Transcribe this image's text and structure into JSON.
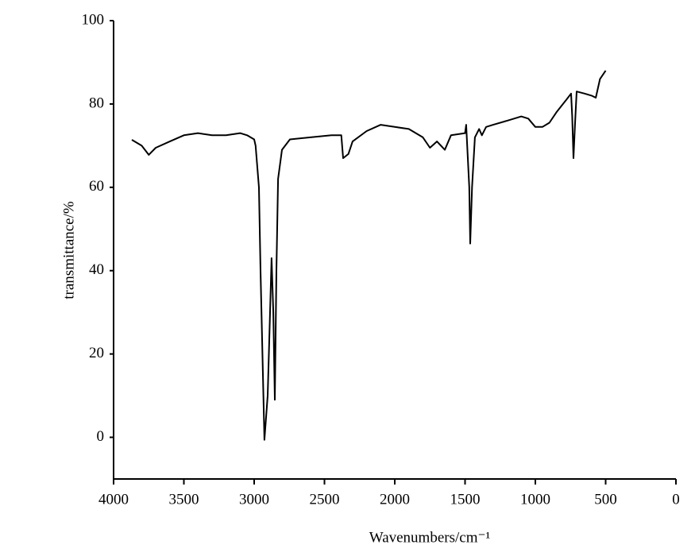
{
  "chart_data": {
    "type": "line",
    "x_label": "Wavenumbers/cm⁻¹",
    "y_label": "transmittance/%",
    "x": [
      3870,
      3800,
      3750,
      3700,
      3600,
      3500,
      3400,
      3300,
      3200,
      3100,
      3050,
      3000,
      2990,
      2966,
      2955,
      2927,
      2904,
      2887,
      2876,
      2864,
      2853,
      2842,
      2830,
      2802,
      2746,
      2600,
      2450,
      2380,
      2367,
      2330,
      2300,
      2200,
      2100,
      2000,
      1900,
      1800,
      1750,
      1700,
      1644,
      1600,
      1500,
      1492,
      1470,
      1463,
      1450,
      1430,
      1400,
      1380,
      1350,
      1300,
      1200,
      1100,
      1050,
      1000,
      950,
      900,
      850,
      780,
      746,
      738,
      729,
      718,
      706,
      650,
      600,
      570,
      540,
      500
    ],
    "series": [
      {
        "color": "#000000",
        "values": [
          71.4,
          70,
          67.8,
          69.5,
          71,
          72.5,
          73,
          72.5,
          72.5,
          73,
          72.5,
          71.5,
          70,
          60,
          40,
          -0.6,
          10,
          30,
          43,
          30,
          9,
          40,
          62,
          69,
          71.5,
          72,
          72.5,
          72.5,
          67,
          68,
          71,
          73.5,
          75,
          74.5,
          74,
          72,
          69.5,
          71,
          69,
          72.5,
          73,
          75,
          60,
          46.5,
          60,
          72,
          74,
          72.5,
          74.5,
          75,
          76,
          77,
          76.5,
          74.5,
          74.5,
          75.5,
          78,
          81,
          82.5,
          77,
          67,
          75,
          83,
          82.5,
          82,
          81.5,
          86,
          88
        ]
      }
    ],
    "xlim": [
      4000,
      0
    ],
    "xticks": [
      4000,
      3500,
      3000,
      2500,
      2000,
      1500,
      1000,
      500,
      0
    ],
    "ylim": [
      -10,
      100
    ],
    "yticks": [
      0,
      20,
      40,
      60,
      80,
      100
    ]
  }
}
